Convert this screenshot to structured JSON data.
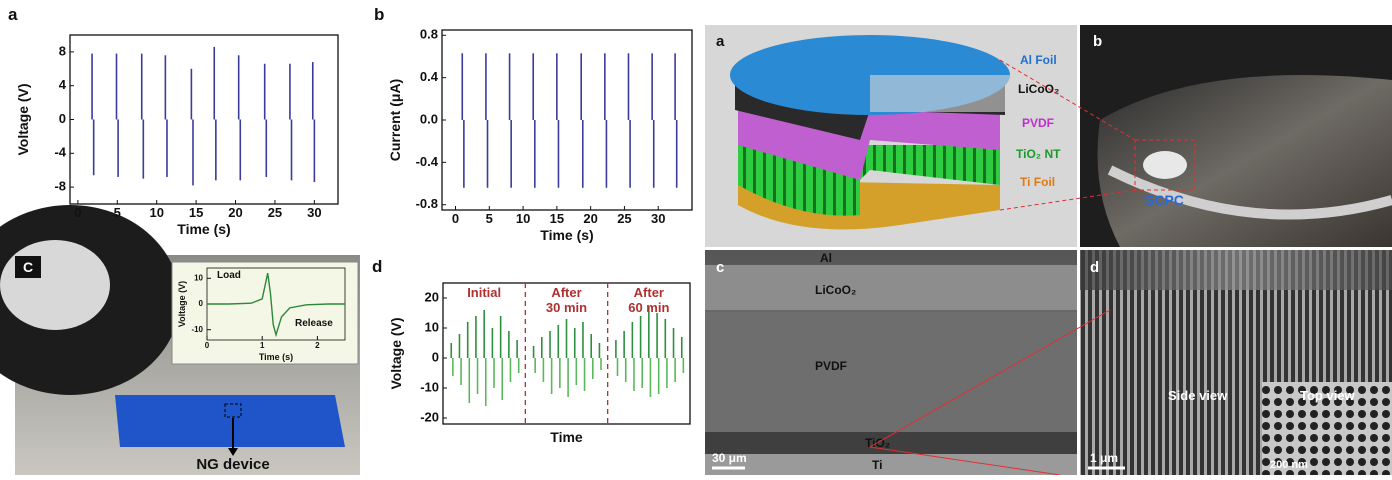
{
  "chart_data": [
    {
      "type": "spike",
      "panel": "a",
      "xlabel": "Time (s)",
      "ylabel": "Voltage (V)",
      "x": [
        1.8,
        4.9,
        8.1,
        11.1,
        14.4,
        17.3,
        20.4,
        23.7,
        26.9,
        29.8
      ],
      "series": [
        {
          "color": "#3b3b9c",
          "values": [
            7.8,
            7.8,
            7.8,
            7.6,
            6.0,
            8.6,
            7.6,
            6.6,
            6.6,
            6.8
          ]
        },
        {
          "color": "#3b3b9c",
          "values": [
            -6.6,
            -6.8,
            -7.0,
            -6.8,
            -7.8,
            -7.2,
            -7.2,
            -6.8,
            -7.2,
            -7.4
          ]
        }
      ],
      "xlim": [
        -1,
        33
      ],
      "xticks": [
        0,
        5,
        10,
        15,
        20,
        25,
        30
      ],
      "ylim": [
        -10,
        10
      ],
      "yticks": [
        -8,
        -4,
        0,
        4,
        8
      ]
    },
    {
      "type": "spike",
      "panel": "b",
      "xlabel": "Time (s)",
      "ylabel": "Current (μA)",
      "x": [
        1.0,
        4.5,
        8.0,
        11.5,
        15.0,
        18.6,
        22.1,
        25.6,
        29.1,
        32.5
      ],
      "series": [
        {
          "color": "#3b3b9c",
          "values": [
            0.63,
            0.63,
            0.63,
            0.63,
            0.63,
            0.63,
            0.63,
            0.63,
            0.63,
            0.63
          ]
        },
        {
          "color": "#3b3b9c",
          "values": [
            -0.64,
            -0.64,
            -0.64,
            -0.64,
            -0.64,
            -0.64,
            -0.64,
            -0.64,
            -0.64,
            -0.64
          ]
        }
      ],
      "xlim": [
        -2,
        35
      ],
      "xticks": [
        0,
        5,
        10,
        15,
        20,
        25,
        30
      ],
      "ylim": [
        -0.85,
        0.85
      ],
      "yticks": [
        -0.8,
        -0.4,
        {
          "value": 0,
          "label": "0.0"
        },
        0.4,
        0.8
      ]
    },
    {
      "type": "line",
      "xlabel": "Time (s)",
      "ylabel": "Voltage (V)",
      "annotations": [
        "Load",
        "Release"
      ],
      "x": [
        0,
        0.4,
        0.8,
        1.0,
        1.05,
        1.1,
        1.15,
        1.2,
        1.25,
        1.35,
        1.5,
        1.8,
        2.2,
        2.5
      ],
      "series": [
        {
          "color": "#2a8a3a",
          "values": [
            0,
            0,
            0.3,
            2,
            7,
            12,
            4,
            -8,
            -12,
            -5,
            -1.5,
            -0.3,
            0,
            0
          ]
        }
      ],
      "xlim": [
        0,
        2.5
      ],
      "xticks": [
        0,
        1,
        2
      ],
      "ylim": [
        -14,
        14
      ],
      "yticks": [
        -10,
        0,
        10
      ]
    },
    {
      "type": "spike",
      "panel": "d",
      "xlabel": "Time",
      "ylabel": "Voltage (V)",
      "segment_labels": [
        [
          "Initial"
        ],
        [
          "After",
          "30 min"
        ],
        [
          "After",
          "60 min"
        ]
      ],
      "dividers": [
        10,
        20
      ],
      "x": [
        1,
        2,
        3,
        4,
        5,
        6,
        7,
        8,
        9,
        11,
        12,
        13,
        14,
        15,
        16,
        17,
        18,
        19,
        21,
        22,
        23,
        24,
        25,
        26,
        27,
        28,
        29
      ],
      "series": [
        {
          "color": "#2f8f3f",
          "values": [
            5,
            8,
            12,
            14,
            16,
            10,
            14,
            9,
            6,
            4,
            7,
            9,
            11,
            13,
            10,
            12,
            8,
            5,
            6,
            9,
            12,
            14,
            17,
            15,
            13,
            10,
            7
          ]
        },
        {
          "color": "#5cb85c",
          "values": [
            -6,
            -9,
            -15,
            -12,
            -16,
            -10,
            -14,
            -8,
            -5,
            -5,
            -8,
            -12,
            -10,
            -13,
            -9,
            -11,
            -7,
            -4,
            -6,
            -8,
            -11,
            -10,
            -13,
            -12,
            -10,
            -8,
            -5
          ]
        }
      ],
      "xlim": [
        0,
        30
      ],
      "ylim": [
        -22,
        25
      ],
      "yticks": [
        -20,
        -10,
        0,
        10,
        20
      ]
    }
  ],
  "photo_panels": {
    "left_c": {
      "panel": "C",
      "label": "NG device"
    },
    "right_a": {
      "panel": "a",
      "layers": [
        "Al Foil",
        "LiCoO₂",
        "PVDF",
        "TiO₂ NT",
        "Ti Foil"
      ]
    },
    "right_b": {
      "panel": "b",
      "label": "SCPC"
    },
    "right_c": {
      "panel": "c",
      "layers": [
        "Al",
        "LiCoO₂",
        "PVDF",
        "TiO₂",
        "Ti"
      ],
      "scale": "30 μm"
    },
    "right_d": {
      "panel": "d",
      "labels": [
        "Side view",
        "Top view"
      ],
      "scale": "1 μm",
      "inset_scale": "200 nm"
    }
  }
}
